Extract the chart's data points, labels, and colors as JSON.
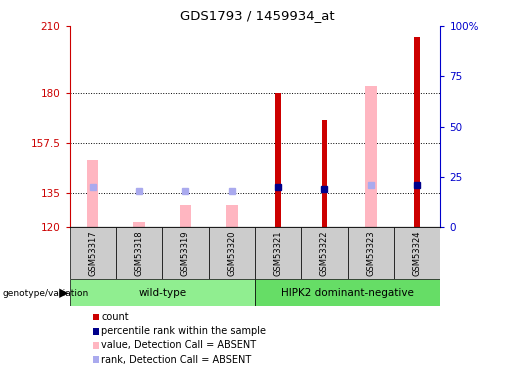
{
  "title": "GDS1793 / 1459934_at",
  "samples": [
    "GSM53317",
    "GSM53318",
    "GSM53319",
    "GSM53320",
    "GSM53321",
    "GSM53322",
    "GSM53323",
    "GSM53324"
  ],
  "groups": [
    {
      "label": "wild-type",
      "color": "#90EE90",
      "samples": [
        0,
        1,
        2,
        3
      ]
    },
    {
      "label": "HIPK2 dominant-negative",
      "color": "#66DD66",
      "samples": [
        4,
        5,
        6,
        7
      ]
    }
  ],
  "ylim_left": [
    120,
    210
  ],
  "ylim_right": [
    0,
    100
  ],
  "yticks_left": [
    120,
    135,
    157.5,
    180,
    210
  ],
  "ytick_labels_left": [
    "120",
    "135",
    "157.5",
    "180",
    "210"
  ],
  "yticks_right": [
    0,
    25,
    50,
    75,
    100
  ],
  "ytick_labels_right": [
    "0",
    "25",
    "50",
    "75",
    "100%"
  ],
  "hlines": [
    135,
    157.5,
    180
  ],
  "red_bars": {
    "values": [
      null,
      null,
      null,
      null,
      180,
      168,
      null,
      205
    ],
    "base": 120
  },
  "pink_bars": {
    "values": [
      150,
      122,
      130,
      130,
      null,
      null,
      183,
      null
    ],
    "base": 120
  },
  "blue_squares": {
    "values": [
      138,
      136,
      136,
      136,
      138,
      137,
      139,
      139
    ],
    "absent": [
      true,
      true,
      true,
      true,
      false,
      false,
      true,
      false
    ]
  },
  "legend_items": [
    {
      "color": "#CC0000",
      "label": "count"
    },
    {
      "color": "#00008B",
      "label": "percentile rank within the sample"
    },
    {
      "color": "#FFB6C1",
      "label": "value, Detection Call = ABSENT"
    },
    {
      "color": "#AAAAEE",
      "label": "rank, Detection Call = ABSENT"
    }
  ],
  "pink_bar_width": 0.25,
  "red_bar_width": 0.12,
  "left_axis_color": "#CC0000",
  "right_axis_color": "#0000CC",
  "grid_color": "#000000",
  "bg_color": "#FFFFFF"
}
